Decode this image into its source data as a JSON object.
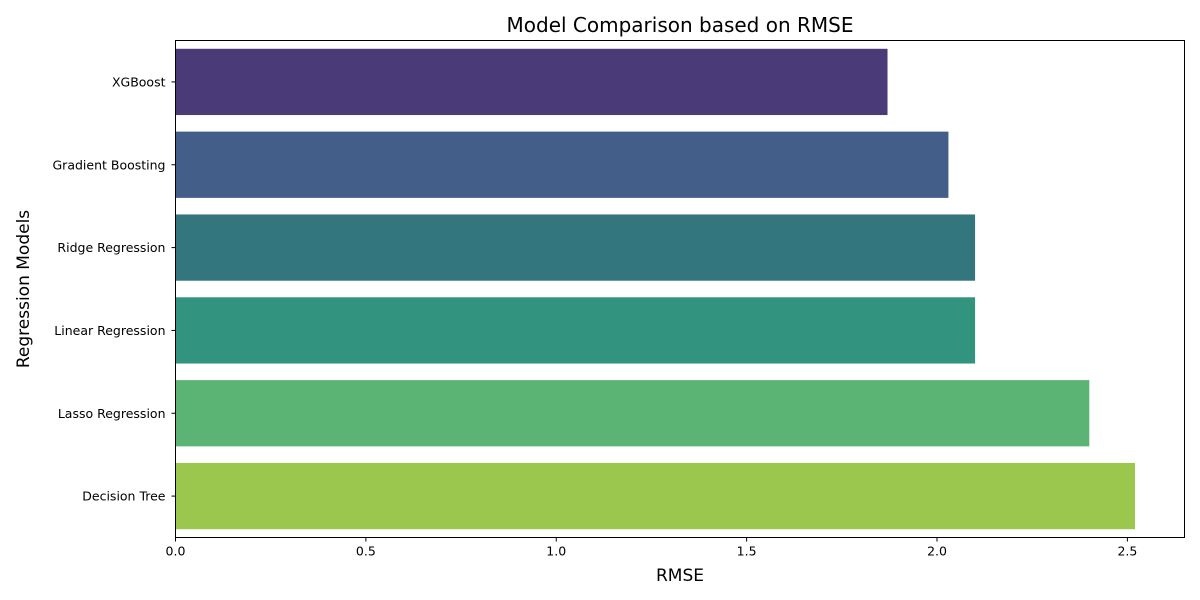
{
  "chart_data": {
    "type": "bar",
    "orientation": "horizontal",
    "title": "Model Comparison based on RMSE",
    "xlabel": "RMSE",
    "ylabel": "Regression Models",
    "xlim": [
      0,
      2.65
    ],
    "xticks": [
      0.0,
      0.5,
      1.0,
      1.5,
      2.0,
      2.5
    ],
    "xtick_labels": [
      "0.0",
      "0.5",
      "1.0",
      "1.5",
      "2.0",
      "2.5"
    ],
    "grid": false,
    "legend": "none",
    "categories": [
      "XGBoost",
      "Gradient Boosting",
      "Ridge Regression",
      "Linear Regression",
      "Lasso Regression",
      "Decision Tree"
    ],
    "values": [
      1.87,
      2.03,
      2.1,
      2.1,
      2.4,
      2.52
    ],
    "colors": [
      "#4a3a77",
      "#435e88",
      "#34767e",
      "#32947f",
      "#5bb374",
      "#9bc74e"
    ]
  }
}
